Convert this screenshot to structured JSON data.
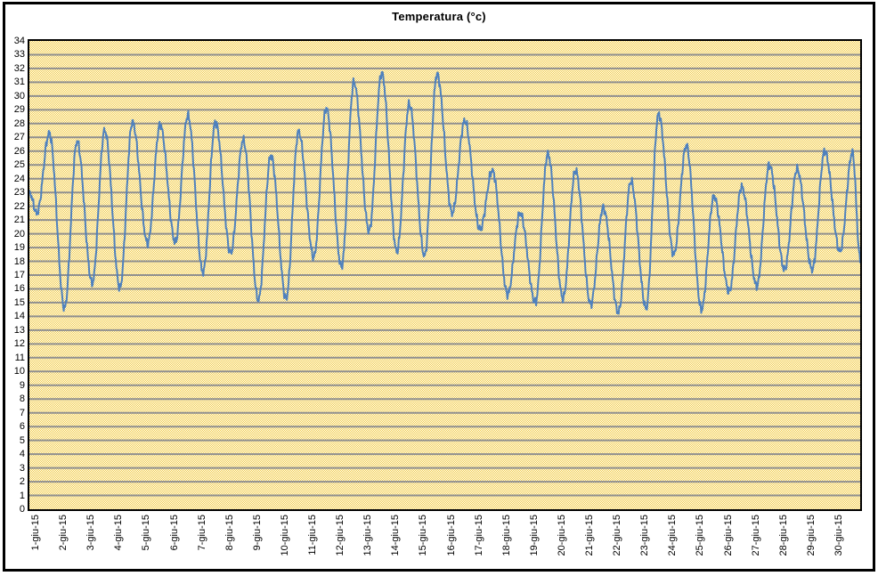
{
  "title": "Temperatura (°c)",
  "colors": {
    "line": "#4F81BD",
    "plot_pattern_yellow": "#F2CC46",
    "plot_pattern_white": "#FFFFFF",
    "gridline": "#8F8F8F",
    "border": "#000000",
    "page_background": "#FFFFFF",
    "text": "#000000"
  },
  "chart_data": {
    "type": "line",
    "title": "Temperatura (°c)",
    "xlabel": "",
    "ylabel": "",
    "ylim": [
      0,
      34
    ],
    "y_tick_step": 1,
    "y_ticks": [
      34,
      33,
      32,
      31,
      30,
      29,
      28,
      27,
      26,
      25,
      24,
      23,
      22,
      21,
      20,
      19,
      18,
      17,
      16,
      15,
      14,
      13,
      12,
      11,
      10,
      9,
      8,
      7,
      6,
      5,
      4,
      3,
      2,
      1,
      0
    ],
    "x_tick_labels": [
      "1-giu-15",
      "2-giu-15",
      "3-giu-15",
      "4-giu-15",
      "5-giu-15",
      "6-giu-15",
      "7-giu-15",
      "8-giu-15",
      "9-giu-15",
      "10-giu-15",
      "11-giu-15",
      "12-giu-15",
      "13-giu-15",
      "14-giu-15",
      "15-giu-15",
      "16-giu-15",
      "17-giu-15",
      "18-giu-15",
      "19-giu-15",
      "20-giu-15",
      "21-giu-15",
      "22-giu-15",
      "23-giu-15",
      "24-giu-15",
      "25-giu-15",
      "26-giu-15",
      "27-giu-15",
      "28-giu-15",
      "29-giu-15",
      "30-giu-15"
    ],
    "x_tick_rotation_deg": -90,
    "grid": "horizontal",
    "legend_position": "none",
    "plot_background": "yellow-white checkerboard pattern fill",
    "series": [
      {
        "name": "Temperatura",
        "description": "continuous sub-daily temperature trace with one diurnal cycle per day; values below estimated from plot",
        "start_value": 23.0,
        "end_value": 18.2,
        "daily": [
          {
            "date": "1-giu-15",
            "min": 21.5,
            "max": 27.3
          },
          {
            "date": "2-giu-15",
            "min": 14.6,
            "max": 26.7
          },
          {
            "date": "3-giu-15",
            "min": 16.4,
            "max": 27.5
          },
          {
            "date": "4-giu-15",
            "min": 16.1,
            "max": 28.1
          },
          {
            "date": "5-giu-15",
            "min": 19.3,
            "max": 27.9
          },
          {
            "date": "6-giu-15",
            "min": 19.4,
            "max": 28.6
          },
          {
            "date": "7-giu-15",
            "min": 17.2,
            "max": 28.1
          },
          {
            "date": "8-giu-15",
            "min": 18.6,
            "max": 26.8
          },
          {
            "date": "9-giu-15",
            "min": 15.2,
            "max": 25.7
          },
          {
            "date": "10-giu-15",
            "min": 15.3,
            "max": 27.4
          },
          {
            "date": "11-giu-15",
            "min": 18.3,
            "max": 29.1
          },
          {
            "date": "12-giu-15",
            "min": 17.6,
            "max": 31.0
          },
          {
            "date": "13-giu-15",
            "min": 20.2,
            "max": 31.7
          },
          {
            "date": "14-giu-15",
            "min": 18.7,
            "max": 29.4
          },
          {
            "date": "15-giu-15",
            "min": 18.4,
            "max": 31.6
          },
          {
            "date": "16-giu-15",
            "min": 21.5,
            "max": 28.2
          },
          {
            "date": "17-giu-15",
            "min": 20.3,
            "max": 24.6
          },
          {
            "date": "18-giu-15",
            "min": 15.6,
            "max": 21.5
          },
          {
            "date": "19-giu-15",
            "min": 15.0,
            "max": 25.8
          },
          {
            "date": "20-giu-15",
            "min": 15.3,
            "max": 24.6
          },
          {
            "date": "21-giu-15",
            "min": 14.9,
            "max": 21.9
          },
          {
            "date": "22-giu-15",
            "min": 14.3,
            "max": 23.8
          },
          {
            "date": "23-giu-15",
            "min": 14.6,
            "max": 28.7
          },
          {
            "date": "24-giu-15",
            "min": 18.5,
            "max": 26.4
          },
          {
            "date": "25-giu-15",
            "min": 14.5,
            "max": 22.7
          },
          {
            "date": "26-giu-15",
            "min": 15.8,
            "max": 23.4
          },
          {
            "date": "27-giu-15",
            "min": 16.2,
            "max": 25.0
          },
          {
            "date": "28-giu-15",
            "min": 17.4,
            "max": 24.7
          },
          {
            "date": "29-giu-15",
            "min": 17.4,
            "max": 26.0
          },
          {
            "date": "30-giu-15",
            "min": 18.7,
            "max": 25.9
          }
        ]
      }
    ]
  }
}
